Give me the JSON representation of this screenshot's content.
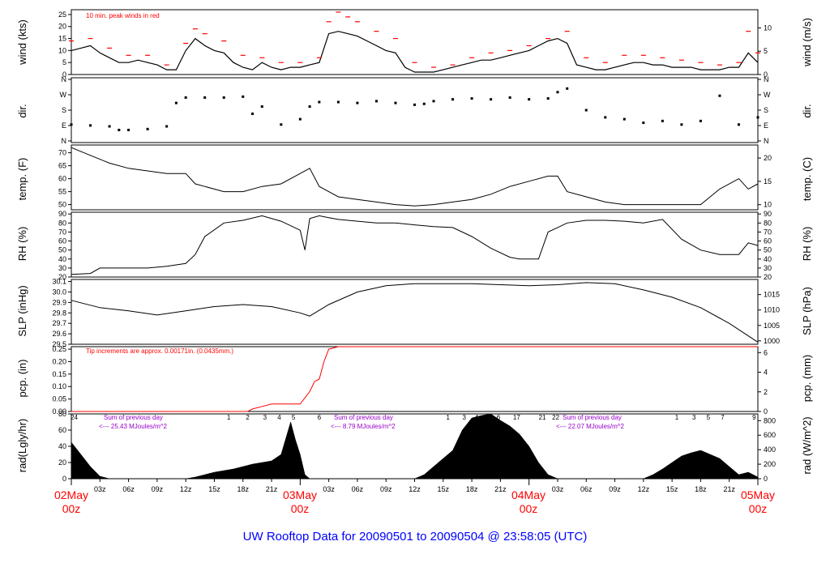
{
  "title": "UW Rooftop Data for 20090501  to  20090504 @ 23:58:05  (UTC)",
  "colors": {
    "line": "#000000",
    "peak": "#ff0000",
    "precip": "#ff0000",
    "note": "#ff0000",
    "radiation_note": "#9900cc",
    "date_labels": "#ff0000",
    "title": "#0000ff"
  },
  "x_axis": {
    "hours_range": [
      0,
      72
    ],
    "hour_ticks": [
      "03z",
      "06z",
      "09z",
      "12z",
      "15z",
      "18z",
      "21z",
      "03z",
      "06z",
      "09z",
      "12z",
      "15z",
      "18z",
      "21z",
      "03z",
      "06z",
      "09z",
      "12z",
      "15z",
      "18z",
      "21z"
    ],
    "date_labels": [
      {
        "day": "02May",
        "hour": "00z"
      },
      {
        "day": "03May",
        "hour": "00z"
      },
      {
        "day": "04May",
        "hour": "00z"
      },
      {
        "day": "05May",
        "hour": "00z"
      }
    ]
  },
  "panels": {
    "wind": {
      "left_label": "wind (kts)",
      "right_label": "wind (m/s)",
      "note": "10 min. peak winds in red",
      "left_ticks": [
        "0",
        "5",
        "10",
        "15",
        "20",
        "25"
      ],
      "right_ticks": [
        "0",
        "5",
        "10"
      ]
    },
    "dir": {
      "left_label": "dir.",
      "right_label": "dir.",
      "ticks": [
        "N",
        "E",
        "S",
        "W",
        "N"
      ]
    },
    "temp": {
      "left_label": "temp. (F)",
      "right_label": "temp. (C)",
      "left_ticks": [
        "50",
        "55",
        "60",
        "65",
        "70"
      ],
      "right_ticks": [
        "10",
        "15",
        "20"
      ]
    },
    "rh": {
      "left_label": "RH (%)",
      "right_label": "RH (%)",
      "ticks": [
        "20",
        "30",
        "40",
        "50",
        "60",
        "70",
        "80",
        "90"
      ]
    },
    "slp": {
      "left_label": "SLP (inHg)",
      "right_label": "SLP (hPa)",
      "left_ticks": [
        "29.5",
        "29.6",
        "29.7",
        "29.8",
        "29.9",
        "30.0",
        "30.1"
      ],
      "right_ticks": [
        "1000",
        "1005",
        "1010",
        "1015"
      ]
    },
    "pcp": {
      "left_label": "pcp. (in)",
      "right_label": "pcp. (mm)",
      "note": "Tip increments are approx. 0.00171in. (0.0435mm.)",
      "left_ticks": [
        "0.00",
        "0.05",
        "0.10",
        "0.15",
        "0.20",
        "0.25"
      ],
      "right_ticks": [
        "0",
        "2",
        "4",
        "6"
      ]
    },
    "rad": {
      "left_label": "rad(Lgly/hr)",
      "right_label": "rad (W/m^2)",
      "left_ticks": [
        "0",
        "20",
        "40",
        "60",
        "80"
      ],
      "right_ticks": [
        "0",
        "200",
        "400",
        "600",
        "800"
      ],
      "sums": [
        {
          "line1": "Sum of previous day",
          "line2": "<--- 25.43 MJoules/m^2"
        },
        {
          "line1": "Sum of previous day",
          "line2": "<--- 8.79 MJoules/m^2"
        },
        {
          "line1": "Sum of previous day",
          "line2": "<--- 22.07 MJoules/m^2"
        }
      ],
      "hour_marks": [
        "24",
        "1",
        "2",
        "3",
        "4",
        "5",
        "6",
        "1",
        "3",
        "4",
        "5",
        "6",
        "17",
        "21",
        "22",
        "1",
        "3",
        "5",
        "7",
        "9"
      ]
    }
  },
  "chart_data": [
    {
      "type": "line",
      "ylabel": "wind (kts)",
      "y2label": "wind (m/s)",
      "ylim": [
        0,
        27
      ],
      "annotation": "10 min. peak winds in red",
      "series": [
        {
          "name": "",
          "x": [
            0,
            1,
            2,
            3,
            4,
            5,
            6,
            7,
            8,
            9,
            10,
            11,
            12,
            13,
            14,
            15,
            16,
            17,
            18,
            19,
            20,
            21,
            22,
            23,
            24,
            25,
            26,
            27,
            28,
            29,
            30,
            31,
            32,
            33,
            34,
            35,
            36,
            37,
            38,
            39,
            40,
            41,
            42,
            43,
            44,
            45,
            46,
            47,
            48,
            49,
            50,
            51,
            52,
            53,
            54,
            55,
            56,
            57,
            58,
            59,
            60,
            61,
            62,
            63,
            64,
            65,
            66,
            67,
            68,
            69,
            70,
            71,
            72
          ],
          "y": [
            10,
            11,
            12,
            9,
            7,
            5,
            5,
            6,
            5,
            4,
            2,
            2,
            10,
            15,
            12,
            10,
            9,
            5,
            3,
            2,
            5,
            3,
            2,
            3,
            3,
            4,
            5,
            17,
            18,
            17,
            16,
            14,
            12,
            10,
            9,
            3,
            1,
            1,
            1,
            2,
            3,
            4,
            5,
            6,
            6,
            7,
            8,
            9,
            10,
            12,
            14,
            15,
            13,
            4,
            3,
            2,
            2,
            3,
            4,
            5,
            5,
            4,
            4,
            3,
            3,
            3,
            2,
            2,
            2,
            3,
            3,
            9,
            5
          ]
        },
        {
          "name": "10 min. peak winds",
          "x": [
            0,
            2,
            4,
            6,
            8,
            10,
            12,
            13,
            14,
            16,
            18,
            20,
            22,
            24,
            26,
            27,
            28,
            29,
            30,
            32,
            34,
            36,
            38,
            40,
            42,
            44,
            46,
            48,
            50,
            52,
            54,
            56,
            58,
            60,
            62,
            64,
            66,
            68,
            70,
            71,
            72
          ],
          "y": [
            14,
            15,
            11,
            8,
            8,
            4,
            13,
            19,
            17,
            14,
            8,
            7,
            5,
            5,
            7,
            22,
            26,
            24,
            22,
            18,
            15,
            5,
            3,
            4,
            7,
            9,
            10,
            12,
            15,
            18,
            7,
            5,
            8,
            8,
            7,
            6,
            5,
            4,
            5,
            18,
            9
          ]
        }
      ]
    },
    {
      "type": "scatter",
      "ylabel": "dir.",
      "yticks": [
        "N",
        "E",
        "S",
        "W",
        "N"
      ],
      "ylim": [
        0,
        360
      ],
      "series": [
        {
          "name": "",
          "x": [
            0,
            2,
            4,
            5,
            6,
            8,
            10,
            11,
            12,
            14,
            16,
            18,
            19,
            20,
            22,
            24,
            25,
            26,
            28,
            30,
            32,
            34,
            36,
            37,
            38,
            40,
            42,
            44,
            46,
            48,
            50,
            51,
            52,
            54,
            56,
            58,
            60,
            62,
            64,
            66,
            68,
            70,
            72
          ],
          "y": [
            100,
            95,
            90,
            70,
            70,
            75,
            90,
            220,
            250,
            250,
            250,
            255,
            160,
            200,
            100,
            130,
            200,
            225,
            225,
            220,
            230,
            220,
            210,
            215,
            230,
            240,
            245,
            240,
            250,
            240,
            245,
            280,
            300,
            180,
            140,
            130,
            110,
            120,
            100,
            120,
            260,
            100,
            140
          ]
        }
      ]
    },
    {
      "type": "line",
      "ylabel": "temp. (F)",
      "y2label": "temp. (C)",
      "ylim": [
        48,
        73
      ],
      "series": [
        {
          "name": "",
          "x": [
            0,
            2,
            4,
            6,
            8,
            10,
            12,
            13,
            14,
            16,
            18,
            20,
            22,
            24,
            25,
            26,
            27,
            28,
            30,
            32,
            34,
            36,
            38,
            40,
            42,
            44,
            46,
            48,
            50,
            51,
            52,
            54,
            56,
            58,
            60,
            62,
            64,
            66,
            68,
            70,
            71,
            72
          ],
          "y": [
            72,
            69,
            66,
            64,
            63,
            62,
            62,
            58,
            57,
            55,
            55,
            57,
            58,
            62,
            64,
            57,
            55,
            53,
            52,
            51,
            50,
            49.5,
            50,
            51,
            52,
            54,
            57,
            59,
            61,
            61,
            55,
            53,
            51,
            50,
            50,
            50,
            50,
            50,
            56,
            60,
            56,
            58
          ]
        }
      ]
    },
    {
      "type": "line",
      "ylabel": "RH (%)",
      "ylim": [
        20,
        92
      ],
      "series": [
        {
          "name": "",
          "x": [
            0,
            2,
            3,
            4,
            6,
            8,
            10,
            12,
            13,
            14,
            16,
            18,
            20,
            22,
            24,
            24.5,
            25,
            26,
            27,
            28,
            30,
            32,
            34,
            36,
            38,
            40,
            42,
            44,
            46,
            47,
            48,
            49,
            50,
            51,
            52,
            54,
            56,
            58,
            60,
            62,
            64,
            66,
            68,
            70,
            71,
            72
          ],
          "y": [
            23,
            24,
            30,
            30,
            30,
            30,
            32,
            35,
            45,
            65,
            80,
            83,
            88,
            82,
            72,
            50,
            85,
            88,
            86,
            84,
            82,
            80,
            80,
            78,
            76,
            75,
            65,
            52,
            42,
            40,
            40,
            40,
            70,
            75,
            80,
            83,
            83,
            82,
            80,
            84,
            62,
            50,
            45,
            45,
            58,
            55
          ]
        }
      ]
    },
    {
      "type": "line",
      "ylabel": "SLP (inHg)",
      "y2label": "SLP (hPa)",
      "ylim": [
        29.5,
        30.12
      ],
      "series": [
        {
          "name": "",
          "x": [
            0,
            3,
            6,
            9,
            12,
            15,
            18,
            21,
            24,
            25,
            27,
            30,
            33,
            36,
            39,
            42,
            45,
            48,
            51,
            54,
            57,
            60,
            63,
            66,
            69,
            71,
            72
          ],
          "y": [
            29.92,
            29.85,
            29.82,
            29.78,
            29.82,
            29.86,
            29.88,
            29.86,
            29.8,
            29.77,
            29.88,
            30.0,
            30.06,
            30.08,
            30.08,
            30.08,
            30.07,
            30.06,
            30.07,
            30.09,
            30.08,
            30.02,
            29.95,
            29.85,
            29.7,
            29.58,
            29.52
          ]
        }
      ]
    },
    {
      "type": "line",
      "ylabel": "pcp. (in)",
      "y2label": "pcp. (mm)",
      "ylim": [
        0,
        0.26
      ],
      "annotation": "Tip increments are approx. 0.00171in. (0.0435mm.)",
      "series": [
        {
          "name": "",
          "x": [
            0,
            18.5,
            19,
            20,
            21,
            22,
            23,
            24,
            25,
            25.5,
            26,
            26.5,
            27,
            28,
            29,
            72
          ],
          "y": [
            0,
            0,
            0.01,
            0.02,
            0.03,
            0.03,
            0.03,
            0.03,
            0.08,
            0.12,
            0.13,
            0.2,
            0.25,
            0.26,
            0.27,
            0.27
          ]
        }
      ]
    },
    {
      "type": "area",
      "ylabel": "rad(Lgly/hr)",
      "y2label": "rad (W/m^2)",
      "ylim": [
        0,
        80
      ],
      "series": [
        {
          "name": "",
          "x": [
            0,
            1,
            2,
            3,
            4,
            12,
            13,
            14,
            15,
            16,
            17,
            18,
            19,
            20,
            21,
            22,
            22.5,
            23,
            23.5,
            24,
            24.5,
            25,
            26,
            28,
            36,
            37,
            38,
            39,
            40,
            41,
            42,
            43,
            44,
            45,
            46,
            47,
            48,
            49,
            50,
            51,
            52,
            60,
            61,
            62,
            63,
            64,
            65,
            66,
            67,
            68,
            69,
            70,
            71,
            72
          ],
          "y": [
            45,
            30,
            15,
            3,
            0,
            0,
            2,
            5,
            8,
            10,
            12,
            15,
            18,
            20,
            22,
            30,
            50,
            70,
            48,
            30,
            5,
            0,
            0,
            0,
            0,
            5,
            15,
            25,
            35,
            60,
            75,
            78,
            80,
            72,
            65,
            55,
            40,
            20,
            5,
            0,
            0,
            0,
            5,
            12,
            20,
            28,
            32,
            35,
            30,
            25,
            15,
            5,
            8,
            2
          ]
        }
      ]
    }
  ]
}
